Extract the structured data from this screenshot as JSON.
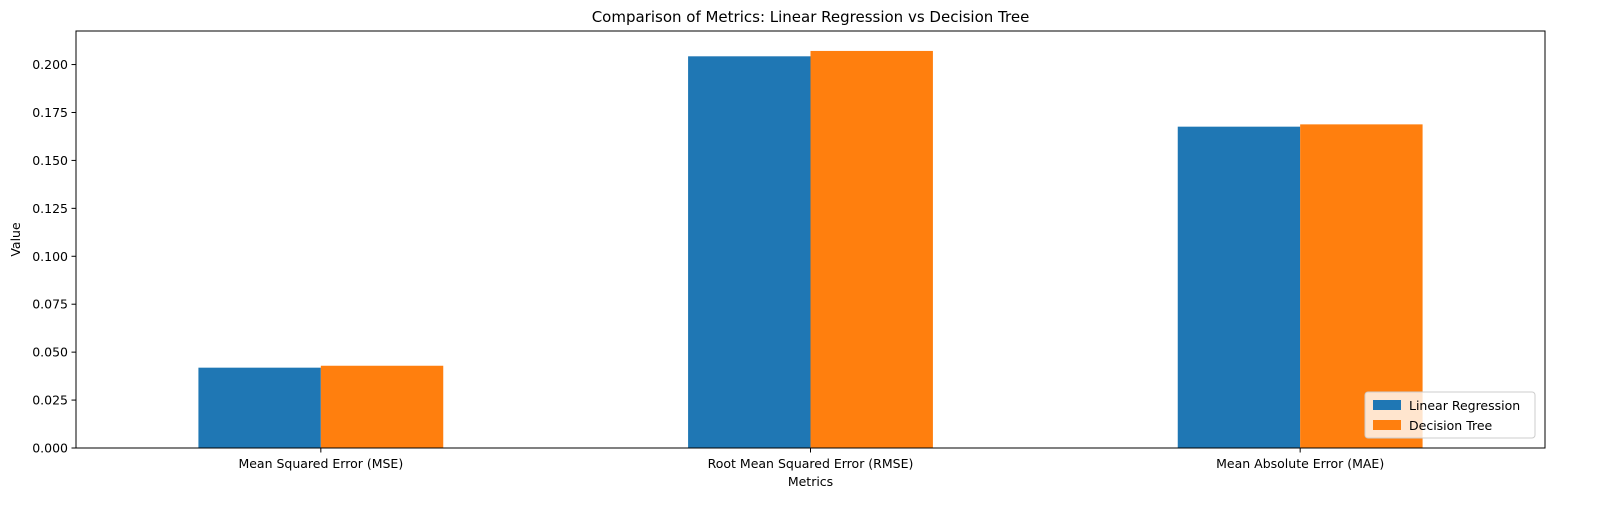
{
  "chart_data": {
    "type": "bar",
    "title": "Comparison of Metrics: Linear Regression vs Decision Tree",
    "xlabel": "Metrics",
    "ylabel": "Value",
    "categories": [
      "Mean Squared Error (MSE)",
      "Root Mean Squared Error (RMSE)",
      "Mean Absolute Error (MAE)"
    ],
    "series": [
      {
        "name": "Linear Regression",
        "color": "#1f77b4",
        "values": [
          0.0419,
          0.2043,
          0.1676
        ]
      },
      {
        "name": "Decision Tree",
        "color": "#ff7f0e",
        "values": [
          0.0429,
          0.2071,
          0.1688
        ]
      }
    ],
    "ylim": [
      0,
      0.2175
    ],
    "yticks": [
      "0.000",
      "0.025",
      "0.050",
      "0.075",
      "0.100",
      "0.125",
      "0.150",
      "0.175",
      "0.200"
    ],
    "grid": false,
    "legend_position": "lower-right"
  }
}
